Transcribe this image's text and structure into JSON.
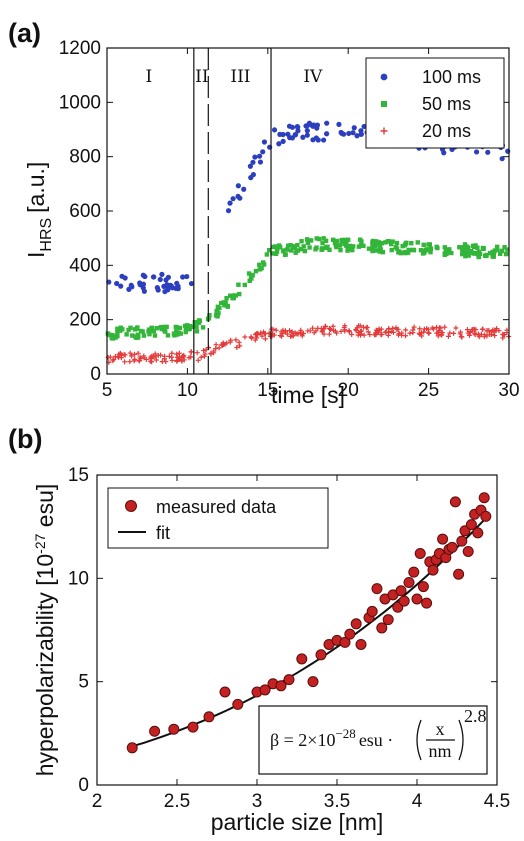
{
  "chart_data": [
    {
      "panel_label": "(a)",
      "type": "scatter",
      "xlabel": "time [s]",
      "ylabel_main": "I",
      "ylabel_sub": "HRS",
      "ylabel_unit": "[a.u.]",
      "xlim": [
        5,
        30
      ],
      "ylim": [
        0,
        1200
      ],
      "xticks": [
        "5",
        "10",
        "15",
        "20",
        "25",
        "30"
      ],
      "yticks": [
        "0",
        "200",
        "400",
        "600",
        "800",
        "1000",
        "1200"
      ],
      "legend_position": "top-right",
      "regions": [
        {
          "label": "I",
          "x_center": 7.6
        },
        {
          "label": "II",
          "x_center": 10.9
        },
        {
          "label": "III",
          "x_center": 13.3
        },
        {
          "label": "IV",
          "x_center": 17.8
        }
      ],
      "region_boundaries": [
        {
          "x": 10.4,
          "style": "solid"
        },
        {
          "x": 11.3,
          "style": "dashed"
        },
        {
          "x": 15.2,
          "style": "solid"
        }
      ],
      "series": [
        {
          "name": "100 ms",
          "color": "#2b3fbf",
          "marker": "dot",
          "segments": [
            {
              "x": [
                5.0,
                10.4
              ],
              "y": [
                335,
                335
              ]
            },
            {
              "x": [
                12.4,
                13.4,
                14.4,
                15.2,
                17.0,
                20.0,
                25.0,
                30.0
              ],
              "y": [
                600,
                680,
                790,
                870,
                895,
                890,
                850,
                820
              ]
            }
          ],
          "spread": 32
        },
        {
          "name": "50 ms",
          "color": "#33b53a",
          "marker": "square",
          "segments": [
            {
              "x": [
                5.0,
                8.5,
                10.5,
                11.3,
                12.5,
                14.0,
                15.2,
                18.0,
                22.0,
                26.0,
                30.0
              ],
              "y": [
                150,
                158,
                175,
                200,
                265,
                360,
                450,
                480,
                470,
                460,
                445
              ]
            }
          ],
          "spread": 22
        },
        {
          "name": "20 ms",
          "color": "#e33b3b",
          "marker": "plus",
          "segments": [
            {
              "x": [
                5.0,
                8.0,
                10.5,
                11.3,
                12.5,
                14.0,
                15.2,
                18.0,
                22.0,
                26.0,
                30.0
              ],
              "y": [
                60,
                62,
                65,
                80,
                105,
                128,
                150,
                162,
                160,
                155,
                150
              ]
            }
          ],
          "spread": 18
        }
      ]
    },
    {
      "panel_label": "(b)",
      "type": "scatter",
      "xlabel": "particle size [nm]",
      "ylabel": "hyperpolarizability [10",
      "ylabel_exp": "-27",
      "ylabel_unit": " esu]",
      "xlim": [
        2,
        4.5
      ],
      "ylim": [
        0,
        15
      ],
      "xticks": [
        "2",
        "2.5",
        "3",
        "3.5",
        "4",
        "4.5"
      ],
      "yticks": [
        "0",
        "5",
        "10",
        "15"
      ],
      "legend_position": "top-left",
      "legend": [
        "measured data",
        "fit"
      ],
      "fit": {
        "coefficient": 2e-28,
        "exponent": 2.8,
        "units": "esu"
      },
      "formula": {
        "lhs": "β = 2×10",
        "exp": "−28",
        "rest": "esu ·",
        "num": "x",
        "den": "nm",
        "power": "2.8"
      },
      "points": {
        "x": [
          2.22,
          2.36,
          2.48,
          2.6,
          2.7,
          2.8,
          2.88,
          3.0,
          3.05,
          3.1,
          3.15,
          3.2,
          3.28,
          3.35,
          3.4,
          3.45,
          3.5,
          3.55,
          3.58,
          3.62,
          3.65,
          3.7,
          3.72,
          3.75,
          3.78,
          3.8,
          3.82,
          3.85,
          3.88,
          3.9,
          3.92,
          3.95,
          3.98,
          4.0,
          4.02,
          4.04,
          4.06,
          4.08,
          4.1,
          4.12,
          4.14,
          4.16,
          4.18,
          4.2,
          4.22,
          4.24,
          4.26,
          4.28,
          4.3,
          4.32,
          4.34,
          4.36,
          4.38,
          4.4,
          4.42,
          4.43
        ],
        "y": [
          1.8,
          2.6,
          2.7,
          2.8,
          3.3,
          4.5,
          3.9,
          4.5,
          4.6,
          4.9,
          4.8,
          5.1,
          6.1,
          5.0,
          6.3,
          6.8,
          7.0,
          6.9,
          7.3,
          7.8,
          6.8,
          8.1,
          8.4,
          9.5,
          7.6,
          9.0,
          8.0,
          9.2,
          8.6,
          9.4,
          8.9,
          9.8,
          10.3,
          9.0,
          11.2,
          9.6,
          8.8,
          10.8,
          10.4,
          10.9,
          11.2,
          11.9,
          11.0,
          11.4,
          11.5,
          13.7,
          10.2,
          11.8,
          12.3,
          11.3,
          12.6,
          13.1,
          12.2,
          13.3,
          13.9,
          13.0
        ]
      }
    }
  ]
}
